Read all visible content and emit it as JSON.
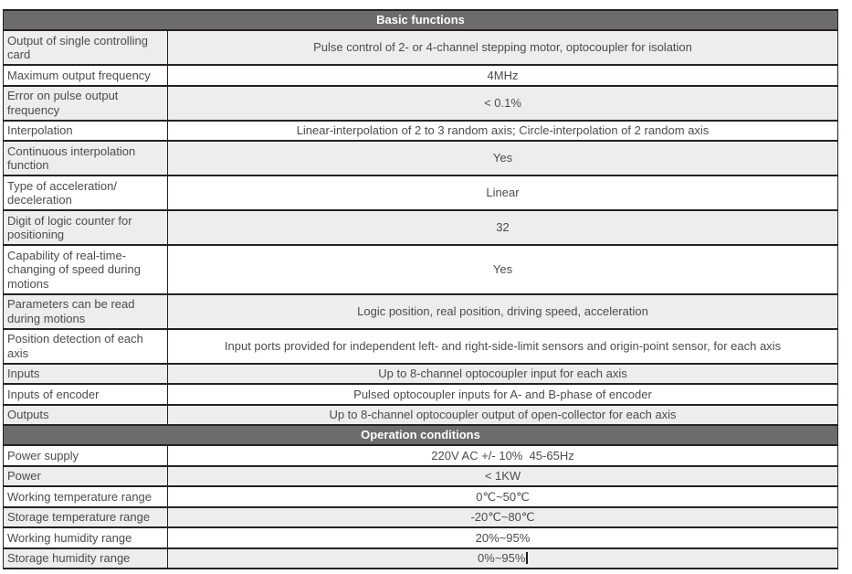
{
  "colors": {
    "section_header_bg": "#6c6c6c",
    "section_header_text": "#ffffff",
    "shaded_row_bg": "#ededed",
    "plain_row_bg": "#ffffff",
    "border": "#262122",
    "body_text": "#4c4c4e"
  },
  "table": {
    "sections": [
      {
        "header": "Basic functions",
        "rows": [
          {
            "label": "Output of single controlling card",
            "value": "Pulse control of 2- or 4-channel stepping motor, optocoupler for isolation"
          },
          {
            "label": "Maximum output frequency",
            "value": "4MHz"
          },
          {
            "label": "Error on pulse output frequency",
            "value": "< 0.1%"
          },
          {
            "label": "Interpolation",
            "value": "Linear-interpolation of 2 to 3 random axis; Circle-interpolation of 2 random axis"
          },
          {
            "label": "Continuous interpolation function",
            "value": "Yes"
          },
          {
            "label": "Type of acceleration/ deceleration",
            "value": "Linear"
          },
          {
            "label": "Digit of logic counter for positioning",
            "value": "32"
          },
          {
            "label": "Capability of real-time-changing of speed during motions",
            "value": "Yes"
          },
          {
            "label": "Parameters can be read during motions",
            "value": "Logic position, real position, driving speed, acceleration"
          },
          {
            "label": "Position detection of each axis",
            "value": "Input ports provided for independent left- and right-side-limit sensors and origin-point sensor, for each axis"
          },
          {
            "label": "Inputs",
            "value": "Up to 8-channel optocoupler input for each axis"
          },
          {
            "label": "Inputs of encoder",
            "value": "Pulsed optocoupler inputs for A- and B-phase of encoder"
          },
          {
            "label": "Outputs",
            "value": "Up to 8-channel optocoupler output of open-collector for each axis"
          }
        ]
      },
      {
        "header": "Operation conditions",
        "rows": [
          {
            "label": "Power supply",
            "value": "220V AC +/- 10%  45-65Hz"
          },
          {
            "label": "Power",
            "value": "< 1KW"
          },
          {
            "label": "Working temperature range",
            "value": "0℃~50℃"
          },
          {
            "label": "Storage temperature range",
            "value": "-20℃~80℃"
          },
          {
            "label": "Working humidity range",
            "value": "20%~95%"
          },
          {
            "label": "Storage humidity range",
            "value": "0%~95%",
            "caret": true
          }
        ]
      }
    ]
  }
}
